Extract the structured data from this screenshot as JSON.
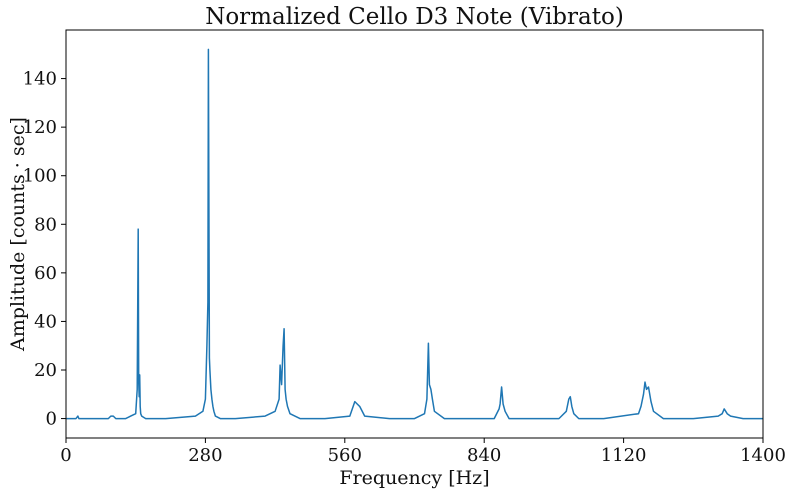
{
  "chart_data": {
    "type": "line",
    "title": "Normalized Cello D3 Note (Vibrato)",
    "xlabel": "Frequency [Hz]",
    "ylabel": "Amplitude [counts · sec]",
    "xlim": [
      0,
      1400
    ],
    "ylim": [
      -8,
      160
    ],
    "xticks": [
      0,
      280,
      560,
      840,
      1120,
      1400
    ],
    "yticks": [
      0,
      20,
      40,
      60,
      80,
      100,
      120,
      140
    ],
    "grid": false,
    "series": [
      {
        "color": "#1f77b4",
        "x": [
          0,
          20,
          24,
          26,
          30,
          60,
          85,
          90,
          95,
          100,
          120,
          130,
          140,
          143,
          145,
          146,
          147,
          148,
          149,
          150,
          152,
          160,
          200,
          260,
          275,
          280,
          283,
          285,
          286,
          288,
          289,
          291,
          293,
          295,
          297,
          300,
          310,
          340,
          400,
          420,
          428,
          430,
          433,
          436,
          438,
          440,
          442,
          445,
          450,
          470,
          520,
          570,
          575,
          580,
          585,
          590,
          600,
          650,
          700,
          720,
          725,
          728,
          730,
          733,
          736,
          740,
          760,
          800,
          860,
          870,
          872,
          875,
          878,
          882,
          890,
          940,
          990,
          1005,
          1010,
          1013,
          1016,
          1020,
          1030,
          1080,
          1150,
          1155,
          1160,
          1163,
          1166,
          1170,
          1175,
          1180,
          1200,
          1260,
          1310,
          1318,
          1322,
          1325,
          1328,
          1335,
          1360,
          1400
        ],
        "y": [
          0,
          0,
          1,
          0,
          0,
          0,
          0,
          1,
          1,
          0,
          0,
          1,
          2,
          12,
          78,
          15,
          9,
          18,
          5,
          2,
          1,
          0,
          0,
          1,
          3,
          8,
          30,
          48,
          152,
          25,
          20,
          12,
          8,
          5,
          3,
          1,
          0,
          0,
          1,
          3,
          8,
          22,
          14,
          30,
          37,
          12,
          8,
          5,
          2,
          0,
          0,
          1,
          4,
          7,
          6,
          5,
          1,
          0,
          0,
          2,
          8,
          31,
          14,
          12,
          8,
          3,
          0,
          0,
          0,
          4,
          6,
          13,
          6,
          3,
          0,
          0,
          0,
          3,
          8,
          9,
          5,
          2,
          0,
          0,
          2,
          5,
          10,
          15,
          12,
          13,
          7,
          3,
          0,
          0,
          1,
          2,
          4,
          3,
          2,
          1,
          0,
          0
        ]
      }
    ]
  }
}
